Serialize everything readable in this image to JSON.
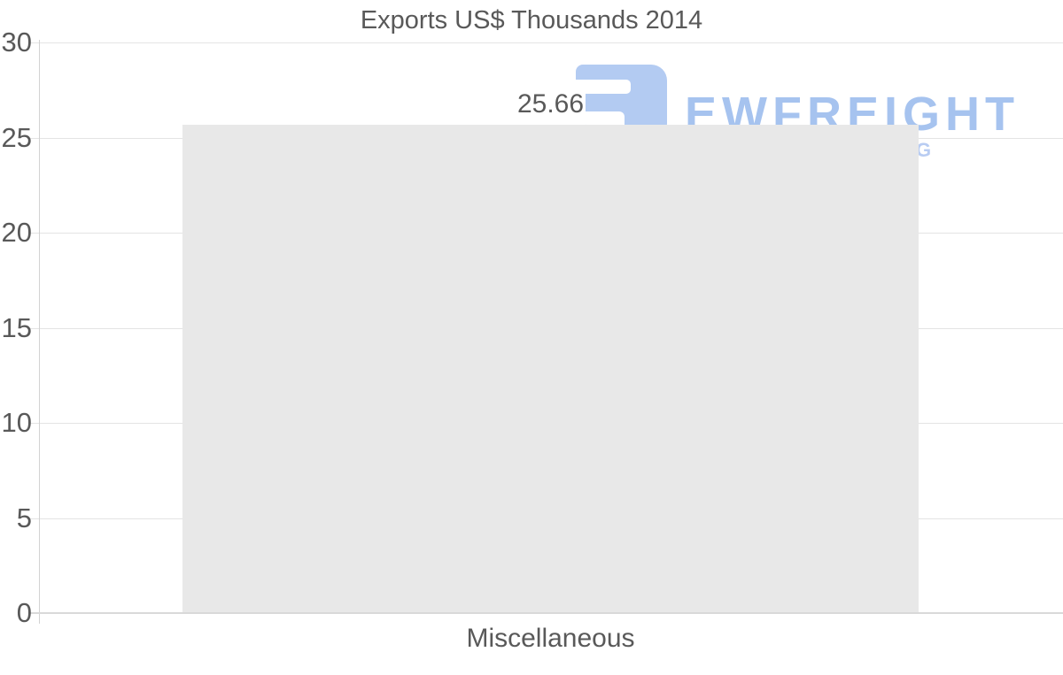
{
  "chart_data": {
    "type": "bar",
    "title": "Exports US$ Thousands 2014",
    "categories": [
      "Miscellaneous"
    ],
    "values": [
      25.66
    ],
    "data_labels": [
      "25.66"
    ],
    "xlabel": "",
    "ylabel": "",
    "ylim": [
      0,
      30
    ],
    "yticks": [
      0,
      5,
      10,
      15,
      20,
      25,
      30
    ],
    "grid": true,
    "legend_position": "none",
    "bar_color": "#e8e8e8",
    "text_color": "#595959",
    "gridline_color": "#e4e4e4",
    "axis_line_color": "#d2d2d2"
  },
  "watermark": {
    "brand_text": "EWFREIGHT",
    "tagline_visible_letter": "G",
    "mark_color": "#b3cbf2",
    "text_color": "#a6c3ef",
    "tagline_color": "#b8ccf2"
  }
}
